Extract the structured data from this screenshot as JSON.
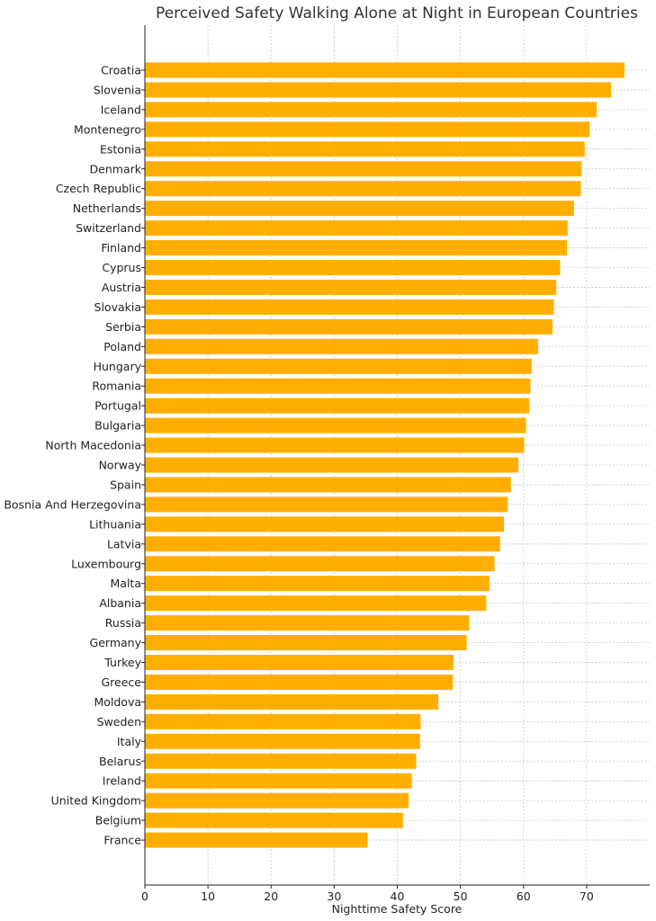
{
  "chart_data": {
    "type": "bar",
    "orientation": "horizontal",
    "title": "Perceived Safety Walking Alone at Night in European Countries",
    "xlabel": "Nighttime Safety Score",
    "ylabel": "",
    "xlim": [
      0,
      80
    ],
    "xticks": [
      0,
      10,
      20,
      30,
      40,
      50,
      60,
      70
    ],
    "grid": true,
    "bar_color": "#ffae00",
    "categories": [
      "Croatia",
      "Slovenia",
      "Iceland",
      "Montenegro",
      "Estonia",
      "Denmark",
      "Czech Republic",
      "Netherlands",
      "Switzerland",
      "Finland",
      "Cyprus",
      "Austria",
      "Slovakia",
      "Serbia",
      "Poland",
      "Hungary",
      "Romania",
      "Portugal",
      "Bulgaria",
      "North Macedonia",
      "Norway",
      "Spain",
      "Bosnia And Herzegovina",
      "Lithuania",
      "Latvia",
      "Luxembourg",
      "Malta",
      "Albania",
      "Russia",
      "Germany",
      "Turkey",
      "Greece",
      "Moldova",
      "Sweden",
      "Italy",
      "Belarus",
      "Ireland",
      "United Kingdom",
      "Belgium",
      "France"
    ],
    "values": [
      76.0,
      73.9,
      71.6,
      70.5,
      69.7,
      69.2,
      69.1,
      68.0,
      67.0,
      66.9,
      65.8,
      65.2,
      64.8,
      64.6,
      62.3,
      61.3,
      61.1,
      60.9,
      60.4,
      60.1,
      59.2,
      58.0,
      57.5,
      56.9,
      56.3,
      55.4,
      54.6,
      54.1,
      51.4,
      51.0,
      48.9,
      48.8,
      46.5,
      43.7,
      43.6,
      43.0,
      42.3,
      41.8,
      40.9,
      35.3
    ]
  }
}
